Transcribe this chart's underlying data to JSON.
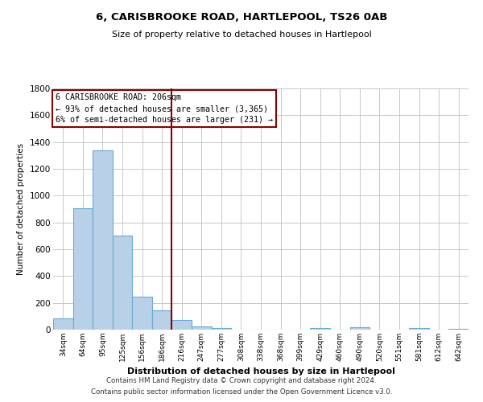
{
  "title": "6, CARISBROOKE ROAD, HARTLEPOOL, TS26 0AB",
  "subtitle": "Size of property relative to detached houses in Hartlepool",
  "xlabel": "Distribution of detached houses by size in Hartlepool",
  "ylabel": "Number of detached properties",
  "bar_labels": [
    "34sqm",
    "64sqm",
    "95sqm",
    "125sqm",
    "156sqm",
    "186sqm",
    "216sqm",
    "247sqm",
    "277sqm",
    "308sqm",
    "338sqm",
    "368sqm",
    "399sqm",
    "429sqm",
    "460sqm",
    "490sqm",
    "520sqm",
    "551sqm",
    "581sqm",
    "612sqm",
    "642sqm"
  ],
  "bar_values": [
    85,
    905,
    1340,
    700,
    245,
    145,
    75,
    25,
    15,
    0,
    0,
    0,
    0,
    15,
    0,
    20,
    0,
    0,
    10,
    0,
    5
  ],
  "bar_color": "#b8d0e8",
  "bar_edgecolor": "#6aaad4",
  "ylim": [
    0,
    1800
  ],
  "yticks": [
    0,
    200,
    400,
    600,
    800,
    1000,
    1200,
    1400,
    1600,
    1800
  ],
  "vline_x": 5.5,
  "vline_color": "#8b0000",
  "annotation_title": "6 CARISBROOKE ROAD: 206sqm",
  "annotation_line1": "← 93% of detached houses are smaller (3,365)",
  "annotation_line2": "6% of semi-detached houses are larger (231) →",
  "annotation_box_color": "#8b0000",
  "footer1": "Contains HM Land Registry data © Crown copyright and database right 2024.",
  "footer2": "Contains public sector information licensed under the Open Government Licence v3.0.",
  "background_color": "#ffffff",
  "grid_color": "#c8c8c8"
}
